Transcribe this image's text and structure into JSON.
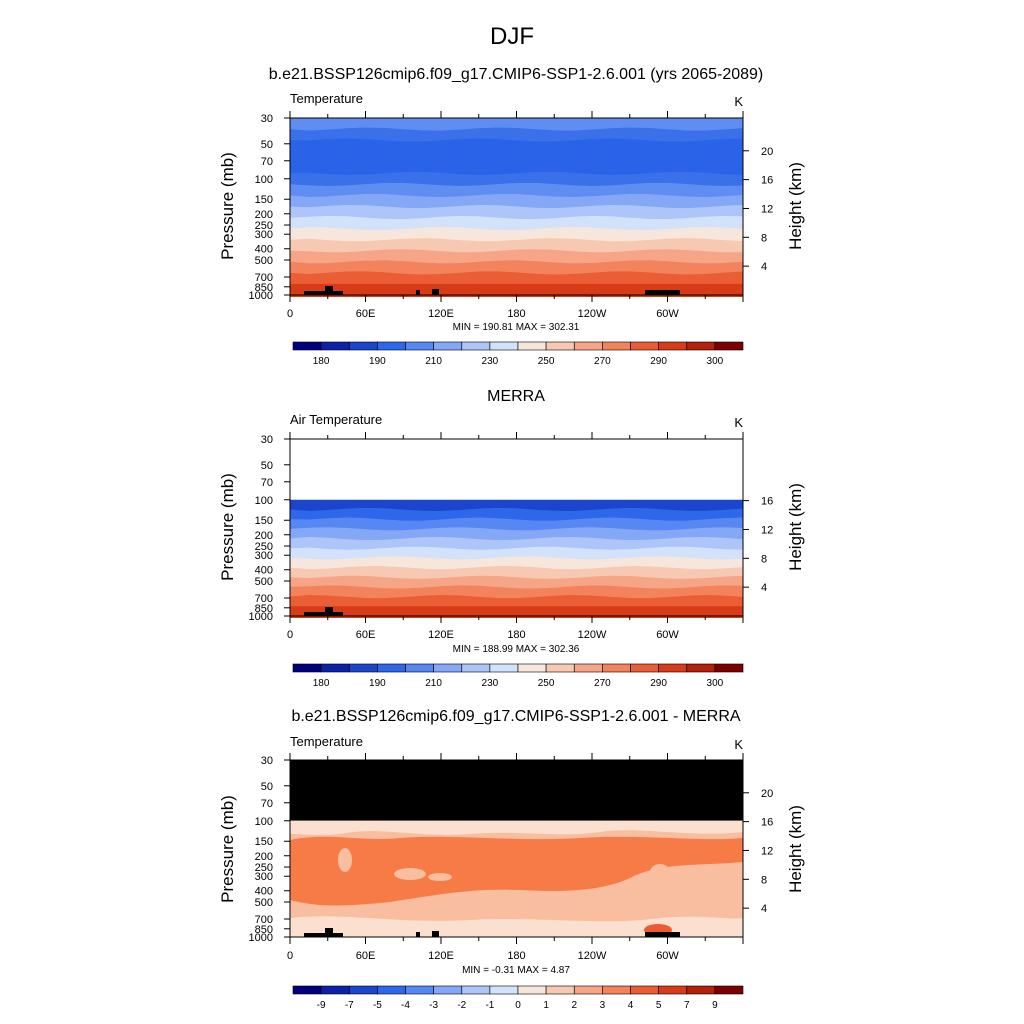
{
  "figure": {
    "title": "DJF"
  },
  "colors": {
    "palette": [
      "#00007f",
      "#0b21a8",
      "#1b45cc",
      "#2e67ea",
      "#5787f2",
      "#84a7f6",
      "#aec5f9",
      "#d3e2fb",
      "#f7e6db",
      "#f8c9b2",
      "#f6a687",
      "#f2835d",
      "#ea5d35",
      "#d83b18",
      "#b4200c",
      "#7d0000"
    ],
    "top_panel_bands": [
      "#5f8df1",
      "#3a70ea",
      "#2a62e8",
      "#2a62e8",
      "#2a62e8",
      "#3a70ea",
      "#5f8df1",
      "#84a7f6",
      "#aec5f9",
      "#d3e2fb",
      "#f7e6db",
      "#f8c9b2",
      "#f6a687",
      "#f2835d",
      "#ea5d35",
      "#d83b18"
    ],
    "diff_black": "#000000",
    "diff_low": "#fbdfcf",
    "diff_mid": "#f9bda0",
    "diff_high": "#f77b46",
    "diff_max": "#ee5a30",
    "land": "#000000"
  },
  "chart_data": [
    {
      "type": "heatmap",
      "title": "b.e21.BSSP126cmip6.f09_g17.CMIP6-SSP1-2.6.001 (yrs 2065-2089)",
      "left_label": "Temperature",
      "units": "K",
      "ylabel": "Pressure (mb)",
      "ylabel_right": "Height (km)",
      "x_ticks": [
        "0",
        "60E",
        "120E",
        "180",
        "120W",
        "60W"
      ],
      "x_tick_lons": [
        0,
        60,
        120,
        180,
        240,
        300
      ],
      "xlim": [
        0,
        360
      ],
      "y_ticks": [
        30,
        50,
        70,
        100,
        150,
        200,
        250,
        300,
        400,
        500,
        700,
        850,
        1000
      ],
      "ylim": [
        30,
        1000
      ],
      "height_ticks": [
        20,
        16,
        12,
        8,
        4
      ],
      "height_tick_labels": [
        "20",
        "16",
        "12",
        "8",
        "4"
      ],
      "stats": "MIN = 190.81  MAX = 302.31",
      "min": 190.81,
      "max": 302.31,
      "top_pressure": 30,
      "colorbar_labels": [
        "180",
        "190",
        "210",
        "230",
        "250",
        "270",
        "290",
        "300"
      ],
      "colorbar_label_boxes": [
        1,
        3,
        5,
        7,
        9,
        11,
        13,
        15
      ]
    },
    {
      "type": "heatmap",
      "title": "MERRA",
      "left_label": "Air Temperature",
      "units": "K",
      "ylabel": "Pressure (mb)",
      "ylabel_right": "Height (km)",
      "x_ticks": [
        "0",
        "60E",
        "120E",
        "180",
        "120W",
        "60W"
      ],
      "x_tick_lons": [
        0,
        60,
        120,
        180,
        240,
        300
      ],
      "xlim": [
        0,
        360
      ],
      "y_ticks": [
        30,
        50,
        70,
        100,
        150,
        200,
        250,
        300,
        400,
        500,
        700,
        850,
        1000
      ],
      "ylim": [
        30,
        1000
      ],
      "height_ticks": [
        16,
        12,
        8,
        4
      ],
      "height_tick_labels": [
        "16",
        "12",
        "8",
        "4"
      ],
      "stats": "MIN = 188.99  MAX = 302.36",
      "min": 188.99,
      "max": 302.36,
      "top_pressure": 100,
      "colorbar_labels": [
        "180",
        "190",
        "210",
        "230",
        "250",
        "270",
        "290",
        "300"
      ],
      "colorbar_label_boxes": [
        1,
        3,
        5,
        7,
        9,
        11,
        13,
        15
      ]
    },
    {
      "type": "heatmap",
      "title": "b.e21.BSSP126cmip6.f09_g17.CMIP6-SSP1-2.6.001 - MERRA",
      "left_label": "Temperature",
      "units": "K",
      "ylabel": "Pressure (mb)",
      "ylabel_right": "Height (km)",
      "x_ticks": [
        "0",
        "60E",
        "120E",
        "180",
        "120W",
        "60W"
      ],
      "x_tick_lons": [
        0,
        60,
        120,
        180,
        240,
        300
      ],
      "xlim": [
        0,
        360
      ],
      "y_ticks": [
        30,
        50,
        70,
        100,
        150,
        200,
        250,
        300,
        400,
        500,
        700,
        850,
        1000
      ],
      "ylim": [
        30,
        1000
      ],
      "height_ticks": [
        20,
        16,
        12,
        8,
        4
      ],
      "height_tick_labels": [
        "20",
        "16",
        "12",
        "8",
        "4"
      ],
      "stats": "MIN = -0.31  MAX =  4.87",
      "min": -0.31,
      "max": 4.87,
      "top_pressure": 30,
      "colorbar_labels": [
        "-9",
        "-7",
        "-5",
        "-4",
        "-3",
        "-2",
        "-1",
        "0",
        "1",
        "2",
        "3",
        "4",
        "5",
        "7",
        "9"
      ],
      "colorbar_label_boxes": [
        1,
        2,
        3,
        4,
        5,
        6,
        7,
        8,
        9,
        10,
        11,
        12,
        13,
        14,
        15
      ]
    }
  ]
}
